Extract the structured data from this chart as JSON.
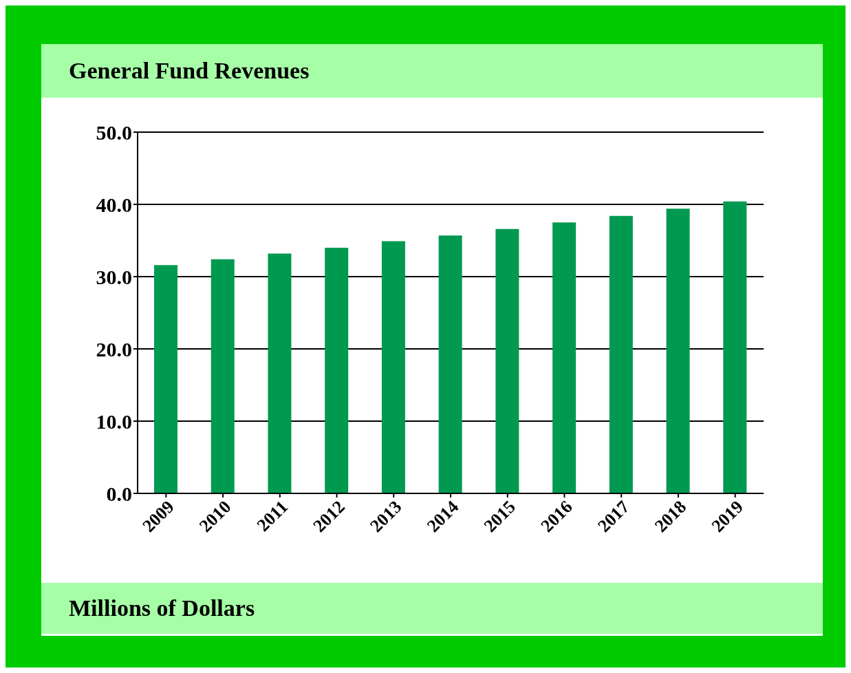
{
  "chart_data": {
    "type": "bar",
    "title": "General Fund Revenues",
    "ylabel": "Millions of Dollars",
    "categories": [
      "2009",
      "2010",
      "2011",
      "2012",
      "2013",
      "2014",
      "2015",
      "2016",
      "2017",
      "2018",
      "2019"
    ],
    "values": [
      31.6,
      32.4,
      33.2,
      34.0,
      34.9,
      35.7,
      36.6,
      37.5,
      38.4,
      39.4,
      40.4
    ],
    "color": "#009950",
    "ylim": [
      0,
      50
    ],
    "yticks": [
      {
        "value": 0,
        "label": "0.0"
      },
      {
        "value": 10,
        "label": "10.0"
      },
      {
        "value": 20,
        "label": "20.0"
      },
      {
        "value": 30,
        "label": "30.0"
      },
      {
        "value": 40,
        "label": "40.0"
      },
      {
        "value": 50,
        "label": "50.0"
      }
    ],
    "grid": "y"
  }
}
